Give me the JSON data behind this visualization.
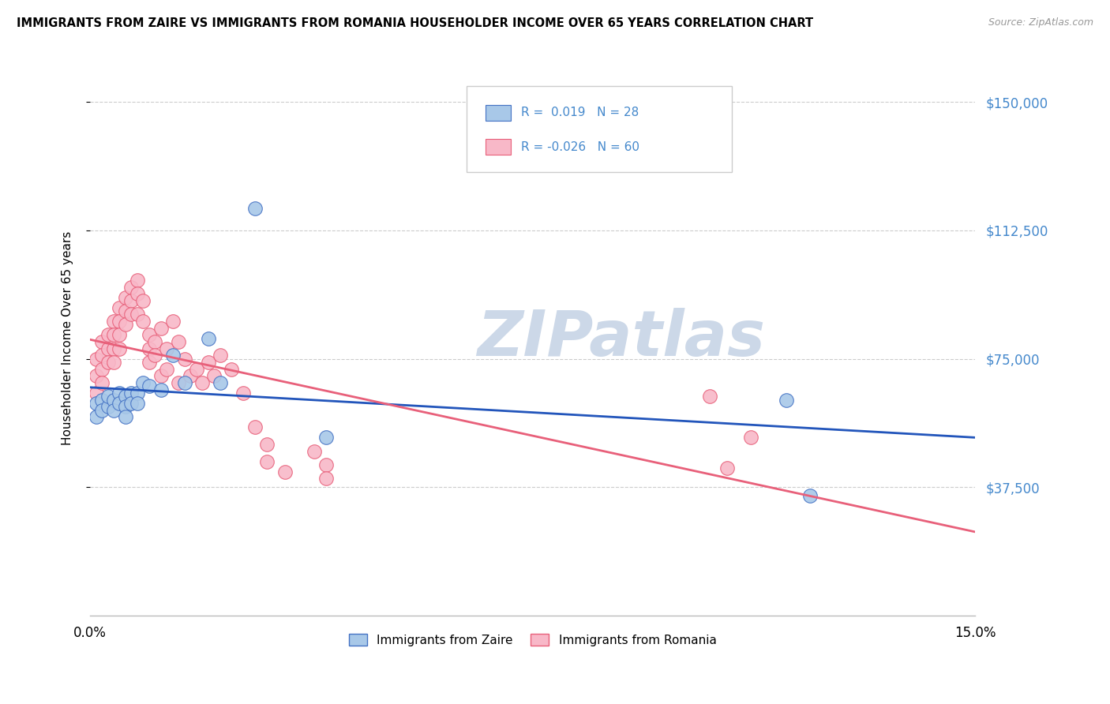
{
  "title": "IMMIGRANTS FROM ZAIRE VS IMMIGRANTS FROM ROMANIA HOUSEHOLDER INCOME OVER 65 YEARS CORRELATION CHART",
  "source": "Source: ZipAtlas.com",
  "ylabel": "Householder Income Over 65 years",
  "ytick_labels": [
    "$150,000",
    "$112,500",
    "$75,000",
    "$37,500"
  ],
  "ytick_values": [
    150000,
    112500,
    75000,
    37500
  ],
  "ylim": [
    0,
    162000
  ],
  "xlim": [
    0.0,
    0.15
  ],
  "xtick_labels": [
    "0.0%",
    "15.0%"
  ],
  "xtick_values": [
    0.0,
    0.15
  ],
  "zaire_R": "0.019",
  "zaire_N": "28",
  "romania_R": "-0.026",
  "romania_N": "60",
  "legend_label_zaire": "Immigrants from Zaire",
  "legend_label_romania": "Immigrants from Romania",
  "color_zaire_fill": "#a8c8e8",
  "color_romania_fill": "#f8b8c8",
  "color_zaire_edge": "#4472c4",
  "color_romania_edge": "#e8607a",
  "color_zaire_line": "#2255bb",
  "color_romania_line": "#e8607a",
  "color_right_axis": "#4488cc",
  "watermark_text": "ZIPatlas",
  "watermark_color": "#ccd8e8",
  "zaire_x": [
    0.001,
    0.001,
    0.002,
    0.002,
    0.003,
    0.003,
    0.004,
    0.004,
    0.005,
    0.005,
    0.006,
    0.006,
    0.006,
    0.007,
    0.007,
    0.008,
    0.008,
    0.009,
    0.01,
    0.012,
    0.014,
    0.016,
    0.02,
    0.022,
    0.028,
    0.04,
    0.118,
    0.122
  ],
  "zaire_y": [
    62000,
    58000,
    63000,
    60000,
    61000,
    64000,
    63000,
    60000,
    65000,
    62000,
    64000,
    61000,
    58000,
    65000,
    62000,
    65000,
    62000,
    68000,
    67000,
    66000,
    76000,
    68000,
    81000,
    68000,
    119000,
    52000,
    63000,
    35000
  ],
  "romania_x": [
    0.001,
    0.001,
    0.001,
    0.002,
    0.002,
    0.002,
    0.002,
    0.003,
    0.003,
    0.003,
    0.004,
    0.004,
    0.004,
    0.004,
    0.005,
    0.005,
    0.005,
    0.005,
    0.006,
    0.006,
    0.006,
    0.007,
    0.007,
    0.007,
    0.008,
    0.008,
    0.008,
    0.009,
    0.009,
    0.01,
    0.01,
    0.01,
    0.011,
    0.011,
    0.012,
    0.012,
    0.013,
    0.013,
    0.014,
    0.015,
    0.015,
    0.016,
    0.017,
    0.018,
    0.019,
    0.02,
    0.021,
    0.022,
    0.024,
    0.026,
    0.028,
    0.03,
    0.03,
    0.033,
    0.038,
    0.04,
    0.04,
    0.105,
    0.108,
    0.112
  ],
  "romania_y": [
    75000,
    70000,
    65000,
    80000,
    76000,
    72000,
    68000,
    82000,
    78000,
    74000,
    86000,
    82000,
    78000,
    74000,
    90000,
    86000,
    82000,
    78000,
    93000,
    89000,
    85000,
    96000,
    92000,
    88000,
    98000,
    94000,
    88000,
    92000,
    86000,
    82000,
    78000,
    74000,
    80000,
    76000,
    84000,
    70000,
    78000,
    72000,
    86000,
    68000,
    80000,
    75000,
    70000,
    72000,
    68000,
    74000,
    70000,
    76000,
    72000,
    65000,
    55000,
    50000,
    45000,
    42000,
    48000,
    44000,
    40000,
    64000,
    43000,
    52000
  ]
}
